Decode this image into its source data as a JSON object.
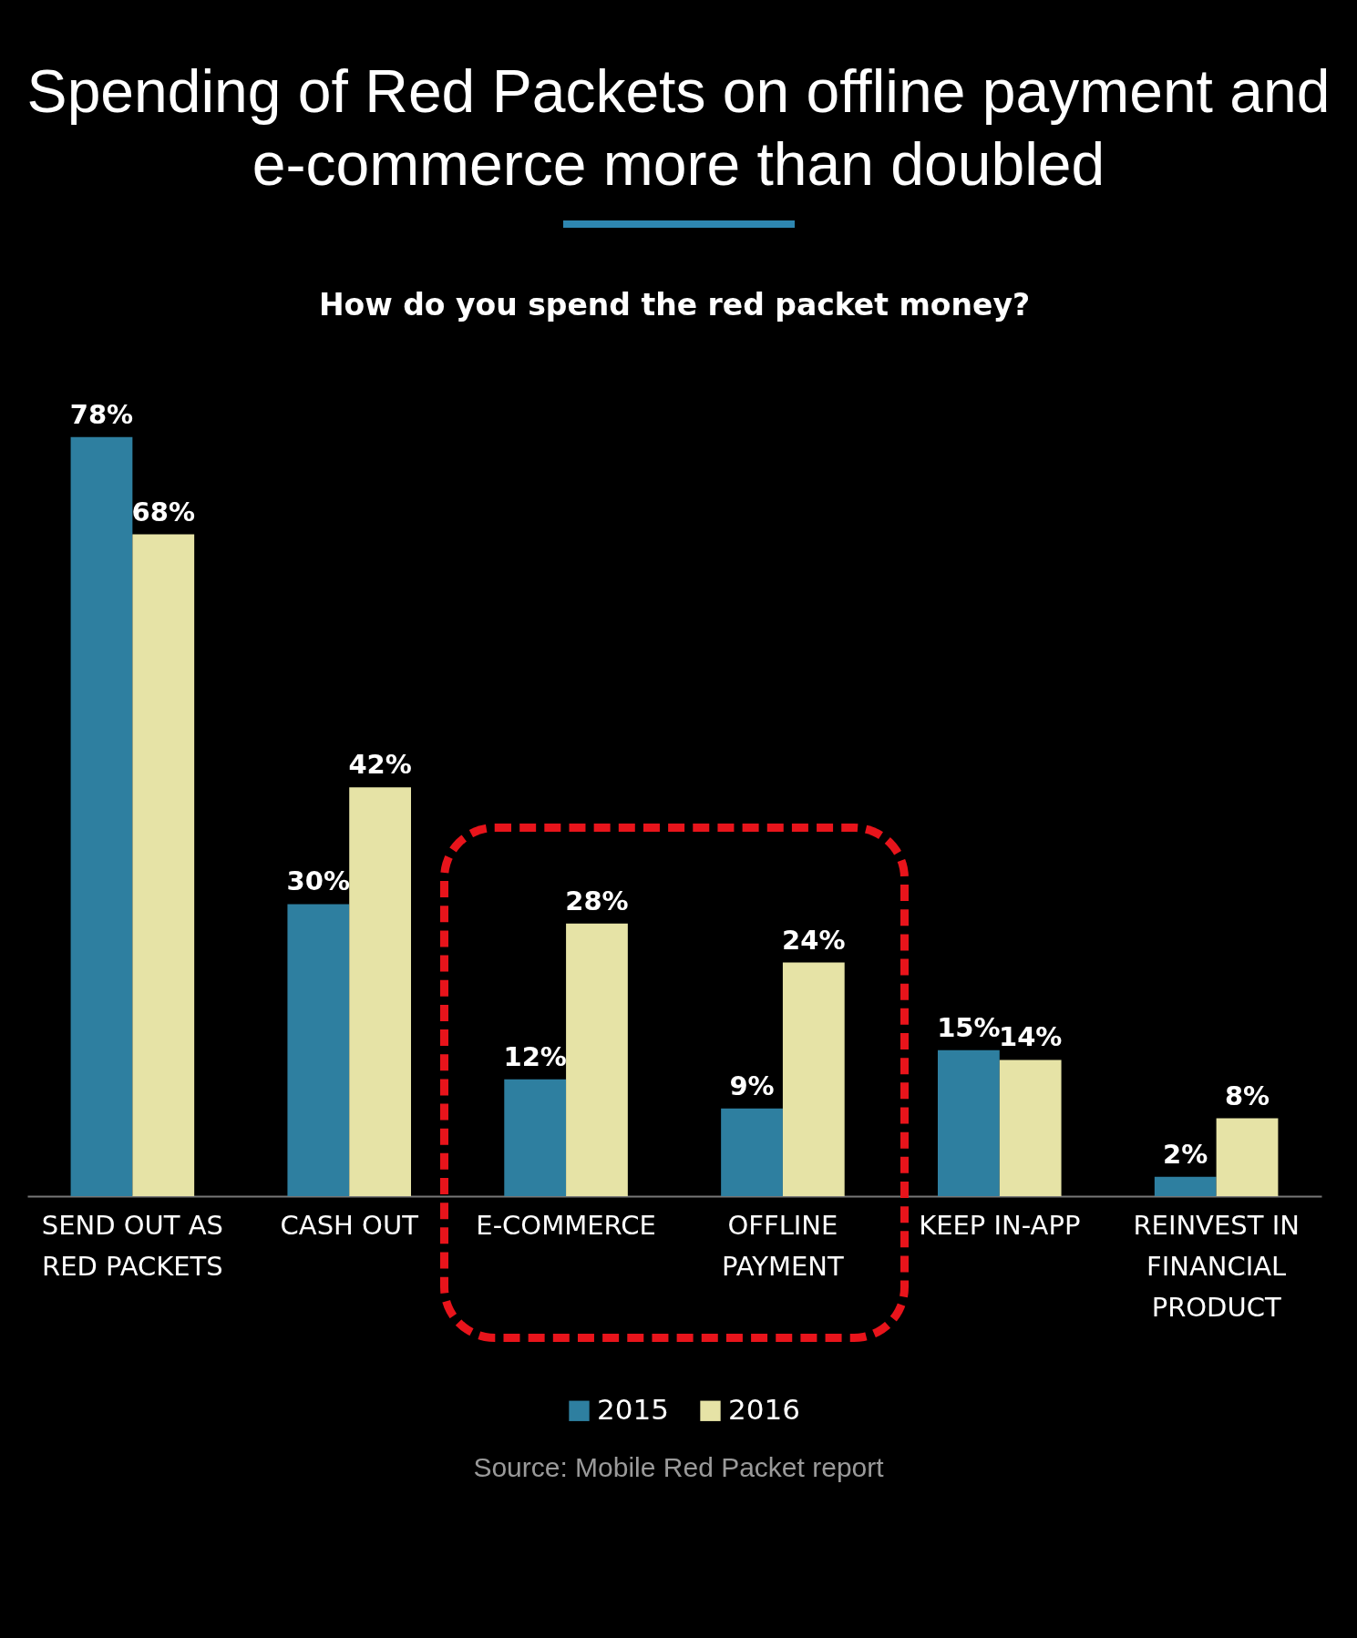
{
  "chart_data": {
    "type": "bar",
    "title": "Spending of Red Packets on offline payment and e-commerce more than doubled",
    "subtitle": "How do you spend the red packet money?",
    "categories": [
      "SEND OUT AS RED PACKETS",
      "CASH OUT",
      "E-COMMERCE",
      "OFFLINE PAYMENT",
      "KEEP IN-APP",
      "REINVEST IN FINANCIAL PRODUCT"
    ],
    "series": [
      {
        "name": "2015",
        "color": "#2e7fa0",
        "values": [
          78,
          30,
          12,
          9,
          15,
          2
        ],
        "value_labels": [
          "78%",
          "30%",
          "12%",
          "9%",
          "15%",
          "2%"
        ]
      },
      {
        "name": "2016",
        "color": "#e6e3a6",
        "values": [
          68,
          42,
          28,
          24,
          14,
          8
        ],
        "value_labels": [
          "68%",
          "42%",
          "28%",
          "24%",
          "14%",
          "8%"
        ]
      }
    ],
    "legend": "bottom",
    "grid": false,
    "annotations": [
      "Source: Mobile Red Packet report"
    ]
  }
}
